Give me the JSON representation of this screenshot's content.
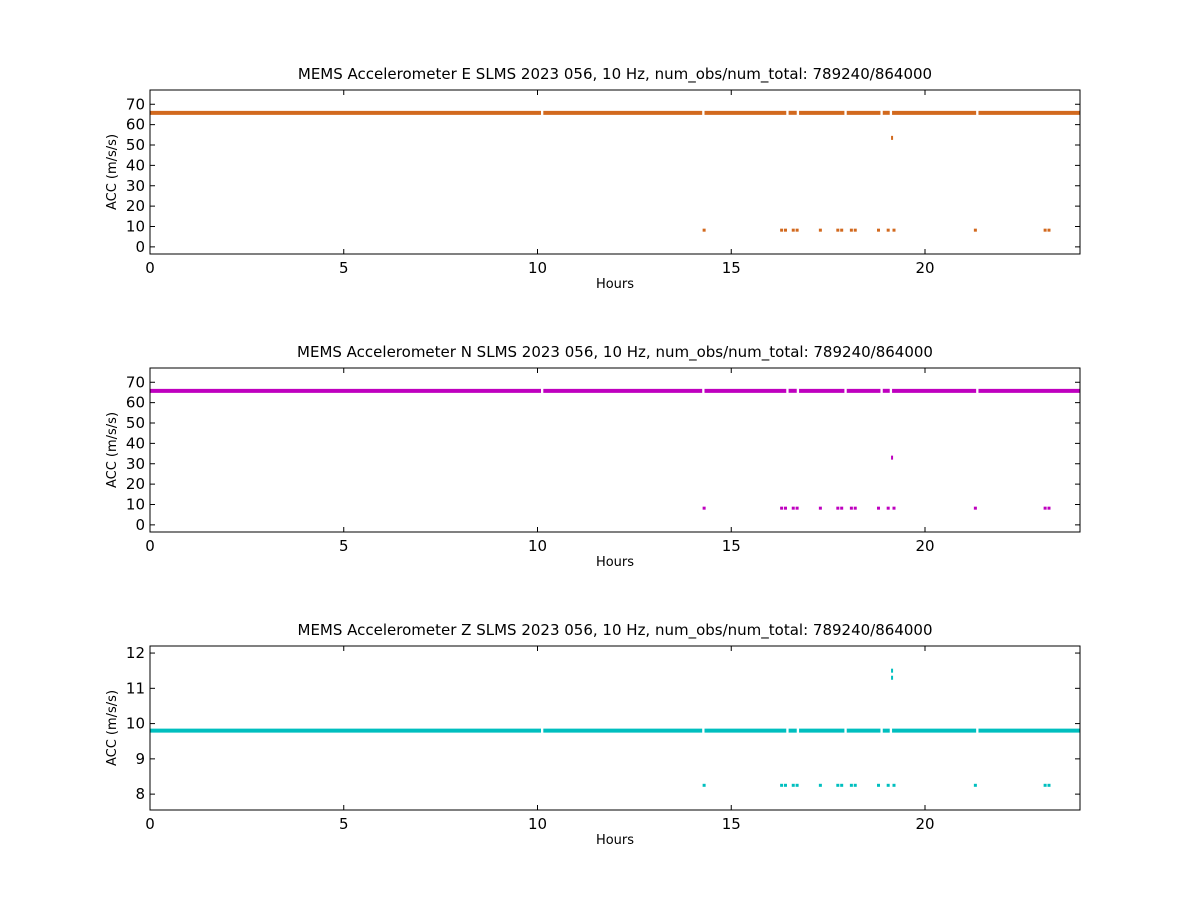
{
  "chart_data": [
    {
      "type": "scatter",
      "title": "MEMS Accelerometer E SLMS 2023 056, 10 Hz, num_obs/num_total: 789240/864000",
      "xlabel": "Hours",
      "ylabel": "ACC (m/s/s)",
      "xlim": [
        0,
        24
      ],
      "ylim": [
        -3.5,
        77
      ],
      "xticks": [
        0,
        5,
        10,
        15,
        20
      ],
      "yticks": [
        0,
        10,
        20,
        30,
        40,
        50,
        60,
        70
      ],
      "grid": false,
      "color": "#d2691e",
      "series": [
        {
          "baseline_value": 65.8,
          "baseline_gaps_hours": [
            10.12,
            14.28,
            16.45,
            16.72,
            17.95,
            18.88,
            19.12,
            21.35
          ],
          "outlier_x": [
            14.3,
            16.3,
            16.4,
            16.6,
            16.7,
            17.3,
            17.75,
            17.85,
            18.1,
            18.2,
            18.8,
            19.05,
            19.2,
            21.3,
            23.1,
            23.2
          ],
          "outlier_y": [
            8.2,
            8.2,
            8.2,
            8.2,
            8.2,
            8.2,
            8.2,
            8.2,
            8.2,
            8.2,
            8.2,
            8.2,
            8.2,
            8.2,
            8.2,
            8.2
          ],
          "spike_x": [
            19.15
          ],
          "spike_y": [
            53.5
          ]
        }
      ]
    },
    {
      "type": "scatter",
      "title": "MEMS Accelerometer N SLMS 2023 056, 10 Hz, num_obs/num_total: 789240/864000",
      "xlabel": "Hours",
      "ylabel": "ACC (m/s/s)",
      "xlim": [
        0,
        24
      ],
      "ylim": [
        -3.5,
        77
      ],
      "xticks": [
        0,
        5,
        10,
        15,
        20
      ],
      "yticks": [
        0,
        10,
        20,
        30,
        40,
        50,
        60,
        70
      ],
      "grid": false,
      "color": "#bf00bf",
      "series": [
        {
          "baseline_value": 65.8,
          "baseline_gaps_hours": [
            10.12,
            14.28,
            16.45,
            16.72,
            17.95,
            18.88,
            19.12,
            21.35
          ],
          "outlier_x": [
            14.3,
            16.3,
            16.4,
            16.6,
            16.7,
            17.3,
            17.75,
            17.85,
            18.1,
            18.2,
            18.8,
            19.05,
            19.2,
            21.3,
            23.1,
            23.2
          ],
          "outlier_y": [
            8.2,
            8.2,
            8.2,
            8.2,
            8.2,
            8.2,
            8.2,
            8.2,
            8.2,
            8.2,
            8.2,
            8.2,
            8.2,
            8.2,
            8.2,
            8.2
          ],
          "spike_x": [
            19.15
          ],
          "spike_y": [
            33.0
          ]
        }
      ]
    },
    {
      "type": "scatter",
      "title": "MEMS Accelerometer Z SLMS 2023 056, 10 Hz, num_obs/num_total: 789240/864000",
      "xlabel": "Hours",
      "ylabel": "ACC (m/s/s)",
      "xlim": [
        0,
        24
      ],
      "ylim": [
        7.55,
        12.2
      ],
      "xticks": [
        0,
        5,
        10,
        15,
        20
      ],
      "yticks": [
        8,
        9,
        10,
        11,
        12
      ],
      "grid": false,
      "color": "#00bfbf",
      "series": [
        {
          "baseline_value": 9.8,
          "baseline_gaps_hours": [
            10.12,
            14.28,
            16.45,
            16.72,
            17.95,
            18.88,
            19.12,
            21.35
          ],
          "outlier_x": [
            14.3,
            16.3,
            16.4,
            16.6,
            16.7,
            17.3,
            17.75,
            17.85,
            18.1,
            18.2,
            18.8,
            19.05,
            19.2,
            21.3,
            23.1,
            23.2
          ],
          "outlier_y": [
            8.25,
            8.25,
            8.25,
            8.25,
            8.25,
            8.25,
            8.25,
            8.25,
            8.25,
            8.25,
            8.25,
            8.25,
            8.25,
            8.25,
            8.25,
            8.25
          ],
          "spike_x": [
            19.15,
            19.15
          ],
          "spike_y": [
            11.5,
            11.3
          ]
        }
      ]
    }
  ]
}
